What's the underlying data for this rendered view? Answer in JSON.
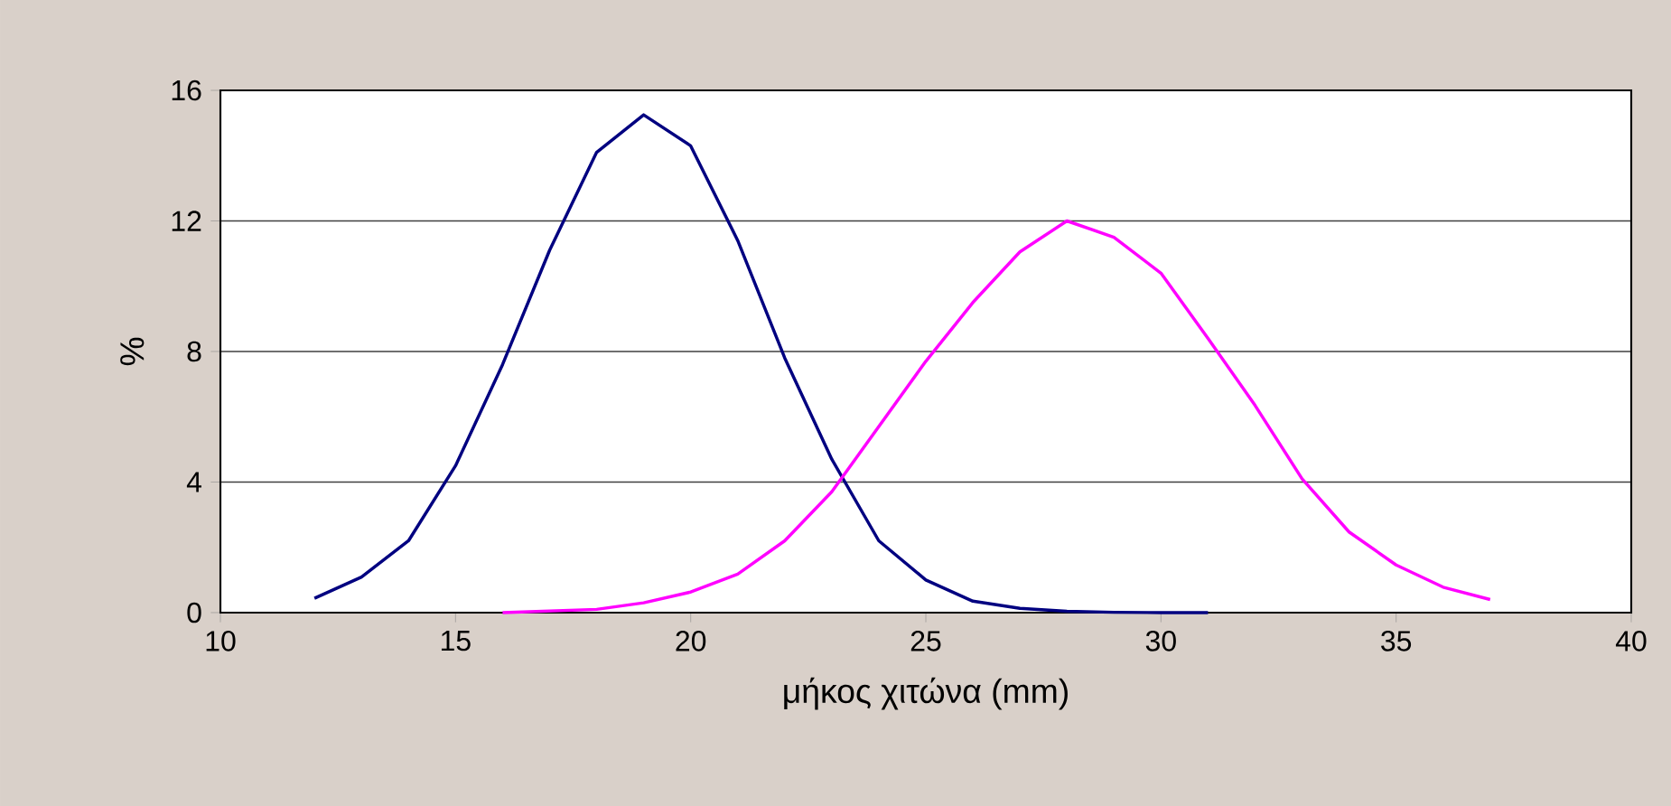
{
  "chart_data": {
    "type": "line",
    "xlabel": "μήκος χιτώνα (mm)",
    "ylabel": "%",
    "xlim": [
      10,
      40
    ],
    "xticks": [
      10,
      15,
      20,
      25,
      30,
      35,
      40
    ],
    "ylim": [
      0,
      16
    ],
    "yticks": [
      0,
      4,
      8,
      12,
      16
    ],
    "grid": "y",
    "marker": "none",
    "line_style": "solid",
    "series": [
      {
        "color": "#000080",
        "x": [
          12,
          13,
          14,
          15,
          16,
          17,
          18,
          19,
          20,
          21,
          22,
          23,
          24,
          25,
          26,
          27,
          28,
          29,
          30,
          31
        ],
        "values": [
          0.44,
          1.09,
          2.2,
          4.5,
          7.6,
          11.1,
          14.1,
          15.25,
          14.3,
          11.4,
          7.8,
          4.7,
          2.2,
          1.0,
          0.35,
          0.13,
          0.04,
          0.01,
          0,
          0
        ]
      },
      {
        "color": "#ff00ff",
        "x": [
          16,
          17,
          18,
          19,
          20,
          21,
          22,
          23,
          24,
          25,
          26,
          27,
          28,
          29,
          30,
          31,
          32,
          33,
          34,
          35,
          36,
          37
        ],
        "values": [
          0,
          0.05,
          0.1,
          0.3,
          0.63,
          1.18,
          2.2,
          3.7,
          5.7,
          7.7,
          9.5,
          11.05,
          12.0,
          11.5,
          10.4,
          8.4,
          6.35,
          4.1,
          2.47,
          1.46,
          0.78,
          0.4
        ]
      }
    ]
  }
}
